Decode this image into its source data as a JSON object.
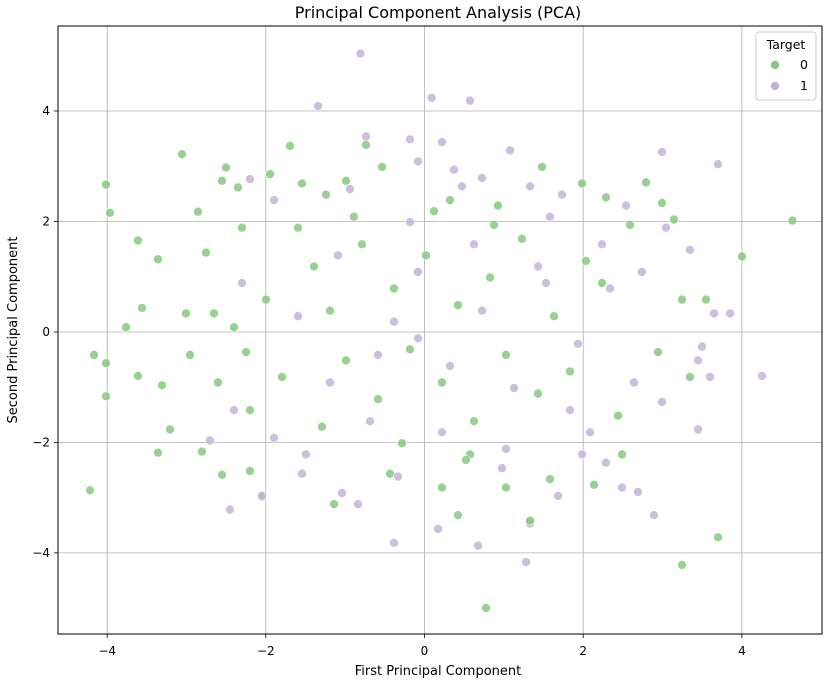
{
  "chart_data": {
    "type": "scatter",
    "title": "Principal Component Analysis (PCA)",
    "xlabel": "First Principal Component",
    "ylabel": "Second Principal Component",
    "xlim": [
      -4.6,
      4.95
    ],
    "ylim": [
      -5.45,
      5.55
    ],
    "xticks": [
      -4,
      -2,
      0,
      2,
      4
    ],
    "yticks": [
      -4,
      -2,
      0,
      2,
      4
    ],
    "xtick_labels": [
      "−4",
      "−2",
      "0",
      "2",
      "4"
    ],
    "ytick_labels": [
      "−4",
      "−2",
      "0",
      "2",
      "4"
    ],
    "grid": true,
    "legend": {
      "title": "Target",
      "placement": "top-right"
    },
    "series": [
      {
        "name": "0",
        "color": "#86c97f",
        "points": [
          [
            -4.2,
            -2.85
          ],
          [
            -4.15,
            -0.4
          ],
          [
            -4.0,
            2.68
          ],
          [
            -3.95,
            2.17
          ],
          [
            -4.0,
            -0.55
          ],
          [
            -4.0,
            -1.15
          ],
          [
            -3.75,
            0.1
          ],
          [
            -3.6,
            1.67
          ],
          [
            -3.55,
            0.45
          ],
          [
            -3.6,
            -0.78
          ],
          [
            -3.35,
            1.33
          ],
          [
            -3.35,
            -2.17
          ],
          [
            -3.3,
            -0.95
          ],
          [
            -3.2,
            -1.75
          ],
          [
            -3.05,
            3.23
          ],
          [
            -3.0,
            0.35
          ],
          [
            -2.95,
            -0.4
          ],
          [
            -2.85,
            2.19
          ],
          [
            -2.75,
            1.45
          ],
          [
            -2.8,
            -2.15
          ],
          [
            -2.65,
            0.35
          ],
          [
            -2.55,
            2.75
          ],
          [
            -2.5,
            2.99
          ],
          [
            -2.55,
            -2.57
          ],
          [
            -2.35,
            2.63
          ],
          [
            -2.3,
            1.9
          ],
          [
            -2.25,
            -0.35
          ],
          [
            -2.2,
            -2.5
          ],
          [
            -2.05,
            -2.97
          ],
          [
            -1.95,
            2.87
          ],
          [
            -1.7,
            3.38
          ],
          [
            -1.55,
            2.7
          ],
          [
            -1.25,
            2.5
          ],
          [
            -1.15,
            -3.1
          ],
          [
            -1.0,
            2.75
          ],
          [
            -0.75,
            3.4
          ],
          [
            -0.55,
            3.0
          ],
          [
            -0.45,
            -2.55
          ],
          [
            0.2,
            -2.8
          ],
          [
            0.3,
            2.4
          ],
          [
            0.4,
            -3.3
          ],
          [
            0.55,
            -2.2
          ],
          [
            0.75,
            -4.98
          ],
          [
            0.85,
            1.95
          ],
          [
            1.0,
            -2.8
          ],
          [
            1.3,
            -3.4
          ],
          [
            1.45,
            3.0
          ],
          [
            1.55,
            -2.65
          ],
          [
            1.95,
            2.7
          ],
          [
            2.1,
            -2.75
          ],
          [
            2.25,
            2.45
          ],
          [
            2.45,
            -2.2
          ],
          [
            2.55,
            1.95
          ],
          [
            2.75,
            2.72
          ],
          [
            2.9,
            -0.35
          ],
          [
            2.95,
            2.35
          ],
          [
            3.1,
            2.05
          ],
          [
            3.2,
            0.6
          ],
          [
            3.3,
            -0.8
          ],
          [
            3.5,
            0.6
          ],
          [
            3.65,
            -3.7
          ],
          [
            3.2,
            -4.2
          ],
          [
            3.95,
            1.38
          ],
          [
            4.58,
            2.03
          ],
          [
            2.2,
            0.9
          ],
          [
            2.4,
            -1.5
          ],
          [
            -1.4,
            1.2
          ],
          [
            -1.2,
            0.4
          ],
          [
            -1.0,
            -0.5
          ],
          [
            -0.8,
            1.6
          ],
          [
            -0.6,
            -1.2
          ],
          [
            -0.4,
            0.8
          ],
          [
            -0.2,
            -0.3
          ],
          [
            0.0,
            1.4
          ],
          [
            0.2,
            -0.9
          ],
          [
            0.4,
            0.5
          ],
          [
            0.6,
            -1.6
          ],
          [
            0.8,
            1.0
          ],
          [
            1.0,
            -0.4
          ],
          [
            1.2,
            1.7
          ],
          [
            1.4,
            -1.1
          ],
          [
            1.6,
            0.3
          ],
          [
            1.8,
            -0.7
          ],
          [
            2.0,
            1.3
          ],
          [
            -2.0,
            0.6
          ],
          [
            -1.8,
            -0.8
          ],
          [
            -1.6,
            1.9
          ],
          [
            -2.2,
            -1.4
          ],
          [
            -2.4,
            0.1
          ],
          [
            -2.6,
            -0.9
          ],
          [
            -1.3,
            -1.7
          ],
          [
            -0.9,
            2.1
          ],
          [
            -0.3,
            -2.0
          ],
          [
            0.1,
            2.2
          ],
          [
            0.5,
            -2.3
          ],
          [
            0.9,
            2.3
          ]
        ]
      },
      {
        "name": "1",
        "color": "#c5b4d8",
        "points": [
          [
            -0.82,
            5.05
          ],
          [
            -1.35,
            4.1
          ],
          [
            0.07,
            4.25
          ],
          [
            0.55,
            4.2
          ],
          [
            -0.75,
            3.55
          ],
          [
            -0.2,
            3.5
          ],
          [
            0.2,
            3.45
          ],
          [
            1.05,
            3.3
          ],
          [
            2.95,
            3.27
          ],
          [
            3.65,
            3.05
          ],
          [
            -2.2,
            2.78
          ],
          [
            -0.1,
            3.1
          ],
          [
            0.35,
            2.95
          ],
          [
            0.7,
            2.8
          ],
          [
            1.3,
            2.65
          ],
          [
            1.7,
            2.5
          ],
          [
            2.5,
            2.3
          ],
          [
            3.0,
            1.9
          ],
          [
            3.3,
            1.5
          ],
          [
            3.6,
            0.35
          ],
          [
            3.8,
            0.35
          ],
          [
            3.45,
            -0.25
          ],
          [
            3.4,
            -0.5
          ],
          [
            3.55,
            -0.8
          ],
          [
            4.2,
            -0.78
          ],
          [
            3.4,
            -1.75
          ],
          [
            2.95,
            -1.25
          ],
          [
            2.85,
            -3.3
          ],
          [
            2.65,
            -2.88
          ],
          [
            2.45,
            -2.8
          ],
          [
            2.25,
            -2.35
          ],
          [
            1.95,
            -2.2
          ],
          [
            1.65,
            -2.95
          ],
          [
            1.3,
            -3.45
          ],
          [
            1.25,
            -4.15
          ],
          [
            0.65,
            -3.85
          ],
          [
            0.15,
            -3.55
          ],
          [
            -0.4,
            -3.8
          ],
          [
            -0.85,
            -3.1
          ],
          [
            -1.05,
            -2.9
          ],
          [
            -1.55,
            -2.55
          ],
          [
            -2.05,
            -2.95
          ],
          [
            -2.45,
            -3.2
          ],
          [
            -2.7,
            -1.95
          ],
          [
            -2.4,
            -1.4
          ],
          [
            -1.9,
            -1.9
          ],
          [
            -1.2,
            -0.9
          ],
          [
            -0.7,
            -1.6
          ],
          [
            -0.4,
            0.2
          ],
          [
            -0.1,
            1.1
          ],
          [
            0.3,
            -0.6
          ],
          [
            0.7,
            0.4
          ],
          [
            1.1,
            -1.0
          ],
          [
            1.5,
            0.9
          ],
          [
            1.9,
            -0.2
          ],
          [
            2.3,
            0.8
          ],
          [
            2.6,
            -0.9
          ],
          [
            -1.6,
            0.3
          ],
          [
            -1.1,
            1.4
          ],
          [
            -0.6,
            -0.4
          ],
          [
            -0.2,
            2.0
          ],
          [
            0.2,
            -1.8
          ],
          [
            0.6,
            1.6
          ],
          [
            1.0,
            -2.1
          ],
          [
            1.4,
            1.2
          ],
          [
            1.8,
            -1.4
          ],
          [
            2.2,
            1.6
          ],
          [
            -1.9,
            2.4
          ],
          [
            -1.5,
            -2.2
          ],
          [
            -0.95,
            2.6
          ],
          [
            -0.35,
            -2.6
          ],
          [
            0.45,
            2.65
          ],
          [
            0.95,
            -2.45
          ],
          [
            1.55,
            2.1
          ],
          [
            2.05,
            -1.8
          ],
          [
            2.7,
            1.1
          ],
          [
            -2.3,
            0.9
          ],
          [
            -0.1,
            -0.1
          ]
        ]
      }
    ]
  }
}
